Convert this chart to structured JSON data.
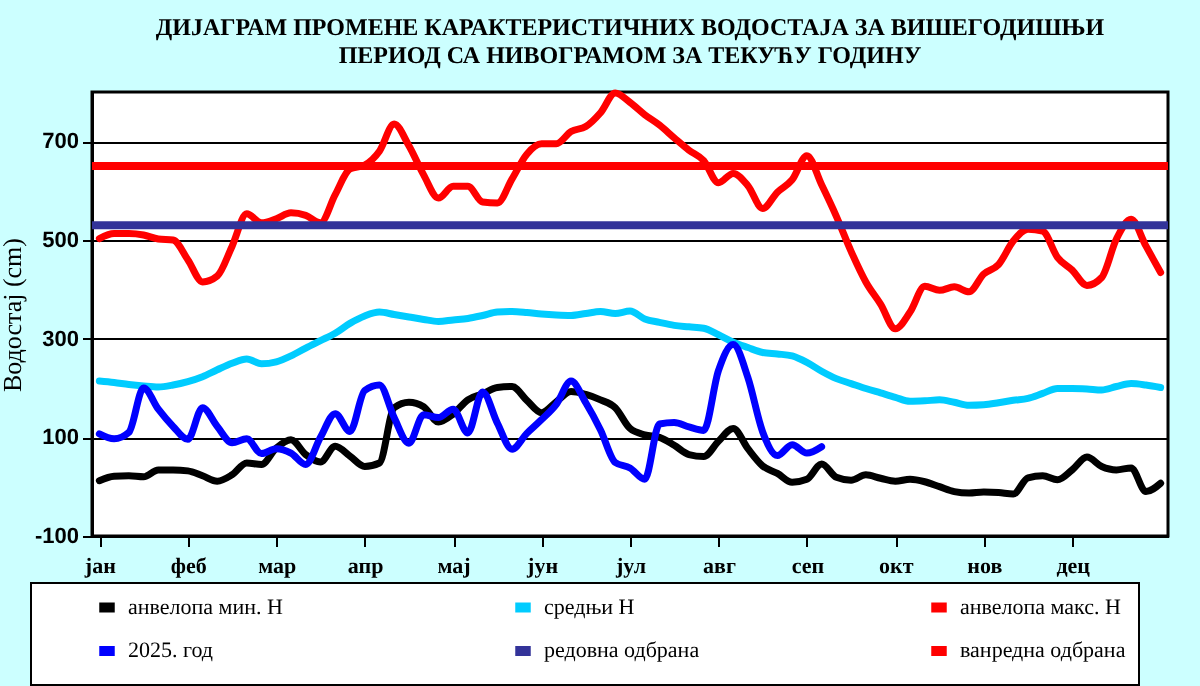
{
  "chart_data": {
    "type": "line",
    "title": "ДИЈАГРАМ ПРОМЕНЕ КАРАКТЕРИСТИЧНИХ ВОДОСТАЈА ЗА ВИШЕГОДИШЊИ\nПЕРИОД СА НИВОГРАМОМ ЗА ТЕКУЋУ ГОДИНУ",
    "ylabel": "Водостај (cm)",
    "categories": [
      "јан",
      null,
      null,
      null,
      null,
      null,
      "феб",
      null,
      null,
      null,
      null,
      null,
      "мар",
      null,
      null,
      null,
      null,
      null,
      "апр",
      null,
      null,
      null,
      null,
      null,
      "мај",
      null,
      null,
      null,
      null,
      null,
      "јун",
      null,
      null,
      null,
      null,
      null,
      "јул",
      null,
      null,
      null,
      null,
      null,
      "авг",
      null,
      null,
      null,
      null,
      null,
      "сеп",
      null,
      null,
      null,
      null,
      null,
      "окт",
      null,
      null,
      null,
      null,
      null,
      "нов",
      null,
      null,
      null,
      null,
      null,
      "дец",
      null,
      null,
      null,
      null,
      null,
      null
    ],
    "ylim": [
      -100,
      800
    ],
    "yticks": [
      -100,
      100,
      300,
      500,
      700
    ],
    "grid": "y",
    "legend": "bottom",
    "line_style": "solid",
    "marker": "none",
    "series": [
      {
        "name": "анвелопа мин. Н",
        "color": "#000000",
        "values": [
          12,
          21,
          22,
          20,
          34,
          34,
          32,
          22,
          11,
          24,
          48,
          45,
          78,
          95,
          65,
          50,
          82,
          62,
          41,
          48,
          160,
          171,
          162,
          131,
          147,
          176,
          188,
          201,
          203,
          175,
          150,
          172,
          193,
          187,
          176,
          160,
          118,
          105,
          100,
          84,
          65,
          61,
          92,
          118,
          77,
          42,
          27,
          9,
          15,
          46,
          19,
          13,
          24,
          17,
          11,
          15,
          10,
          0,
          -10,
          -13,
          -11,
          -12,
          -15,
          18,
          22,
          14,
          34,
          60,
          41,
          34,
          38,
          -10,
          7
        ]
      },
      {
        "name": "средњи Н",
        "color": "#00ccff",
        "values": [
          214,
          211,
          207,
          204,
          202,
          206,
          213,
          223,
          237,
          250,
          259,
          249,
          253,
          265,
          281,
          296,
          311,
          331,
          346,
          354,
          349,
          344,
          339,
          335,
          338,
          341,
          347,
          354,
          355,
          353,
          350,
          348,
          347,
          351,
          355,
          351,
          356,
          340,
          333,
          327,
          324,
          321,
          308,
          293,
          282,
          272,
          269,
          265,
          252,
          234,
          219,
          209,
          199,
          190,
          181,
          173,
          174,
          176,
          171,
          165,
          166,
          170,
          175,
          179,
          189,
          199,
          199,
          198,
          196,
          203,
          209,
          206,
          201
        ]
      },
      {
        "name": "анвелопа макс. Н",
        "color": "#ff0000",
        "values": [
          503,
          513,
          513,
          510,
          502,
          500,
          460,
          415,
          427,
          487,
          553,
          535,
          543,
          555,
          550,
          535,
          592,
          644,
          652,
          680,
          735,
          691,
          632,
          585,
          609,
          609,
          577,
          575,
          624,
          674,
          695,
          695,
          720,
          730,
          758,
          798,
          779,
          754,
          733,
          707,
          682,
          661,
          616,
          635,
          610,
          564,
          597,
          622,
          671,
          612,
          548,
          477,
          415,
          370,
          320,
          354,
          406,
          398,
          405,
          395,
          431,
          450,
          498,
          522,
          518,
          465,
          439,
          408,
          424,
          502,
          542,
          488,
          434
        ]
      },
      {
        "name": "2025. год",
        "color": "#0000ff",
        "values": [
          107,
          97,
          110,
          200,
          157,
          122,
          96,
          160,
          122,
          89,
          97,
          67,
          77,
          68,
          45,
          100,
          148,
          112,
          195,
          206,
          140,
          88,
          146,
          140,
          157,
          109,
          192,
          129,
          76,
          108,
          136,
          167,
          214,
          170,
          115,
          49,
          38,
          15,
          127,
          130,
          121,
          114,
          235,
          288,
          221,
          111,
          63,
          85,
          68,
          81,
          null,
          null,
          null,
          null,
          null,
          null,
          null,
          null,
          null,
          null,
          null,
          null,
          null,
          null,
          null,
          null,
          null,
          null,
          null,
          null,
          null,
          null,
          null
        ]
      }
    ],
    "ref_lines": [
      {
        "axis": "y",
        "value": 530,
        "label": "редовна одбрана",
        "color": "#333399"
      },
      {
        "axis": "y",
        "value": 650,
        "label": "ванредна одбрана",
        "color": "#ff0000"
      }
    ]
  }
}
